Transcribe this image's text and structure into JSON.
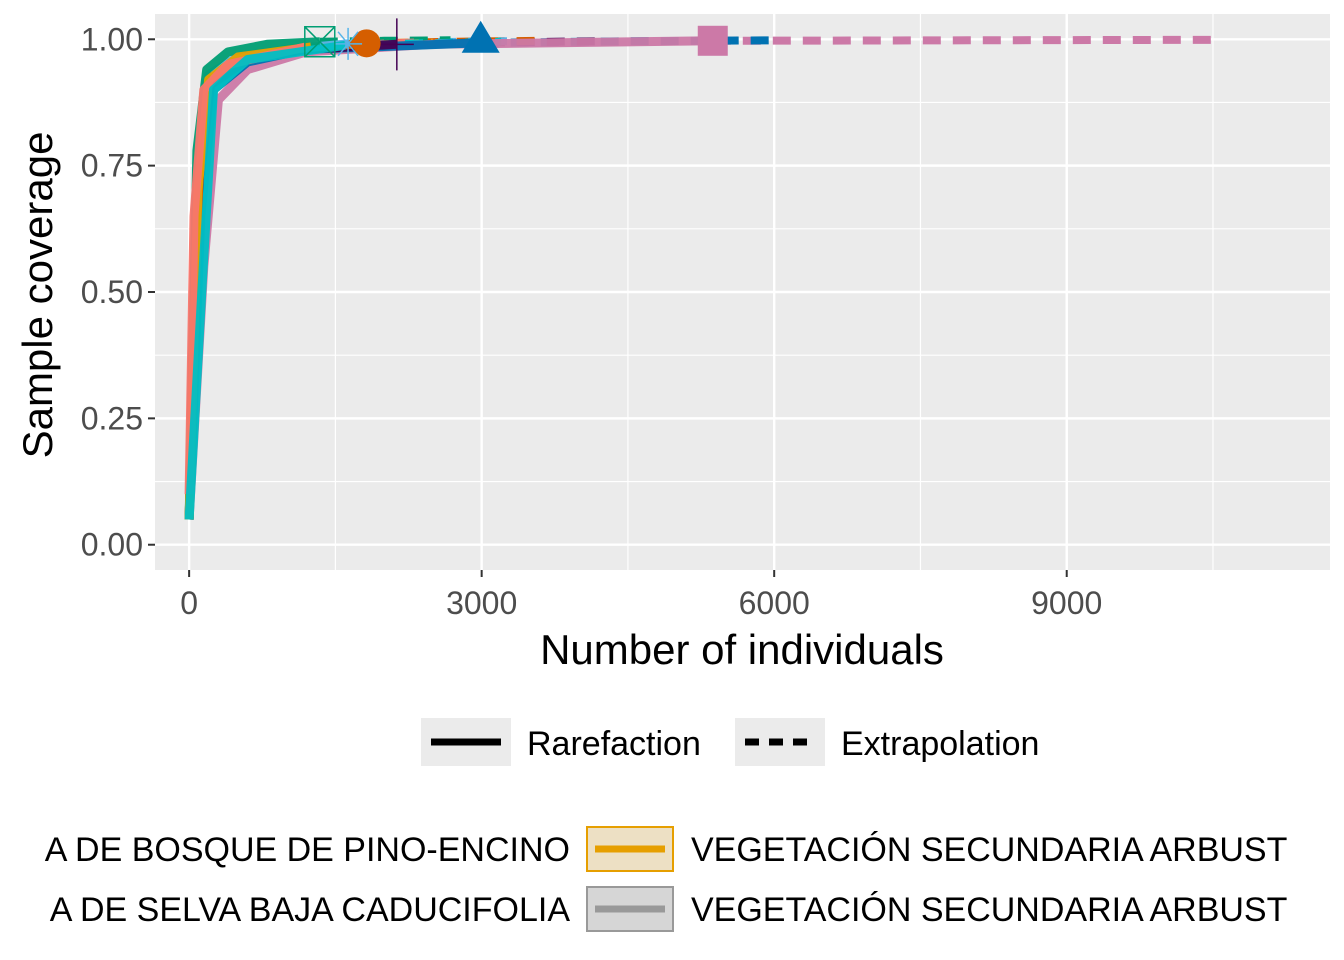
{
  "chart_data": {
    "type": "line",
    "xlabel": "Number of individuals",
    "ylabel": "Sample coverage",
    "xlim": [
      -350,
      11700
    ],
    "ylim": [
      -0.05,
      1.05
    ],
    "x_ticks": [
      0,
      3000,
      6000,
      9000
    ],
    "x_tick_labels": [
      "0",
      "3000",
      "6000",
      "9000"
    ],
    "y_ticks": [
      0,
      0.25,
      0.5,
      0.75,
      1.0
    ],
    "y_tick_labels": [
      "0.00",
      "0.25",
      "0.50",
      "0.75",
      "1.00"
    ],
    "grid": true,
    "background": "#ebebeb",
    "method_legend": [
      {
        "label": "Rarefaction",
        "linetype": "solid"
      },
      {
        "label": "Extrapolation",
        "linetype": "dashed"
      }
    ],
    "series_legend": [
      {
        "label": "A DE BOSQUE DE PINO-ENCINO",
        "color": null
      },
      {
        "label": "A DE SELVA BAJA CADUCIFOLIA",
        "color": null
      },
      {
        "label": "VEGETACIÓN SECUNDARIA ARBUST",
        "color": "#E69F00"
      },
      {
        "label": "VEGETACIÓN SECUNDARIA ARBUST",
        "color": "#999999"
      }
    ],
    "series": [
      {
        "color": "#CC79A7",
        "observed_n": 5370,
        "extrap_end": 10600,
        "marker": "square",
        "rarefaction": [
          [
            0,
            0.05
          ],
          [
            150,
            0.55
          ],
          [
            300,
            0.88
          ],
          [
            600,
            0.94
          ],
          [
            1200,
            0.975
          ],
          [
            2500,
            0.99
          ],
          [
            5370,
            0.997
          ]
        ],
        "extrapolation": [
          [
            5370,
            0.997
          ],
          [
            8000,
            0.998
          ],
          [
            10600,
            0.999
          ]
        ]
      },
      {
        "color": "#0072B2",
        "observed_n": 2990,
        "extrap_end": 5980,
        "marker": "triangle",
        "rarefaction": [
          [
            0,
            0.05
          ],
          [
            120,
            0.65
          ],
          [
            250,
            0.9
          ],
          [
            600,
            0.955
          ],
          [
            1200,
            0.98
          ],
          [
            2990,
            0.993
          ]
        ],
        "extrapolation": [
          [
            2990,
            0.993
          ],
          [
            4500,
            0.996
          ],
          [
            5980,
            0.998
          ]
        ]
      },
      {
        "color": "#440154",
        "observed_n": 2130,
        "extrap_end": 4260,
        "marker": "plus",
        "rarefaction": [
          [
            0,
            0.05
          ],
          [
            100,
            0.7
          ],
          [
            220,
            0.91
          ],
          [
            600,
            0.96
          ],
          [
            1200,
            0.98
          ],
          [
            2130,
            0.99
          ]
        ],
        "extrapolation": [
          [
            2130,
            0.99
          ],
          [
            3200,
            0.994
          ],
          [
            4260,
            0.996
          ]
        ]
      },
      {
        "color": "#D55E00",
        "observed_n": 1820,
        "extrap_end": 3640,
        "marker": "circle",
        "rarefaction": [
          [
            0,
            0.05
          ],
          [
            100,
            0.72
          ],
          [
            200,
            0.92
          ],
          [
            500,
            0.96
          ],
          [
            1000,
            0.98
          ],
          [
            1820,
            0.992
          ]
        ],
        "extrapolation": [
          [
            1820,
            0.992
          ],
          [
            2700,
            0.995
          ],
          [
            3640,
            0.997
          ]
        ]
      },
      {
        "color": "#56B4E9",
        "observed_n": 1630,
        "extrap_end": 3260,
        "marker": "asterisk",
        "rarefaction": [
          [
            0,
            0.05
          ],
          [
            90,
            0.74
          ],
          [
            200,
            0.93
          ],
          [
            500,
            0.965
          ],
          [
            1000,
            0.98
          ],
          [
            1630,
            0.991
          ]
        ],
        "extrapolation": [
          [
            1630,
            0.991
          ],
          [
            2400,
            0.994
          ],
          [
            3260,
            0.996
          ]
        ]
      },
      {
        "color": "#009E73",
        "observed_n": 1340,
        "extrap_end": 2680,
        "marker": "boxed-x",
        "rarefaction": [
          [
            0,
            0.05
          ],
          [
            80,
            0.78
          ],
          [
            180,
            0.94
          ],
          [
            400,
            0.975
          ],
          [
            800,
            0.99
          ],
          [
            1340,
            0.995
          ]
        ],
        "extrapolation": [
          [
            1340,
            0.995
          ],
          [
            2000,
            0.997
          ],
          [
            2680,
            0.998
          ]
        ]
      },
      {
        "color": "#E69F00",
        "observed_n": 1250,
        "extrap_end": 2500,
        "marker": "none",
        "rarefaction": [
          [
            0,
            0.05
          ],
          [
            90,
            0.7
          ],
          [
            200,
            0.92
          ],
          [
            500,
            0.965
          ],
          [
            1250,
            0.985
          ]
        ],
        "extrapolation": [
          [
            1250,
            0.985
          ],
          [
            1900,
            0.99
          ],
          [
            2500,
            0.993
          ]
        ]
      },
      {
        "color": "#F8766D",
        "observed_n": 1200,
        "extrap_end": 2400,
        "marker": "none",
        "rarefaction": [
          [
            0,
            0.1
          ],
          [
            50,
            0.65
          ],
          [
            150,
            0.9
          ],
          [
            400,
            0.95
          ],
          [
            1200,
            0.985
          ]
        ],
        "extrapolation": [
          [
            1200,
            0.985
          ],
          [
            1800,
            0.99
          ],
          [
            2400,
            0.994
          ]
        ]
      },
      {
        "color": "#00BFC4",
        "observed_n": 1600,
        "extrap_end": 3200,
        "marker": "none",
        "rarefaction": [
          [
            0,
            0.05
          ],
          [
            130,
            0.5
          ],
          [
            250,
            0.9
          ],
          [
            600,
            0.96
          ],
          [
            1600,
            0.988
          ]
        ],
        "extrapolation": [
          [
            1600,
            0.988
          ],
          [
            2400,
            0.992
          ],
          [
            3200,
            0.995
          ]
        ]
      }
    ]
  }
}
